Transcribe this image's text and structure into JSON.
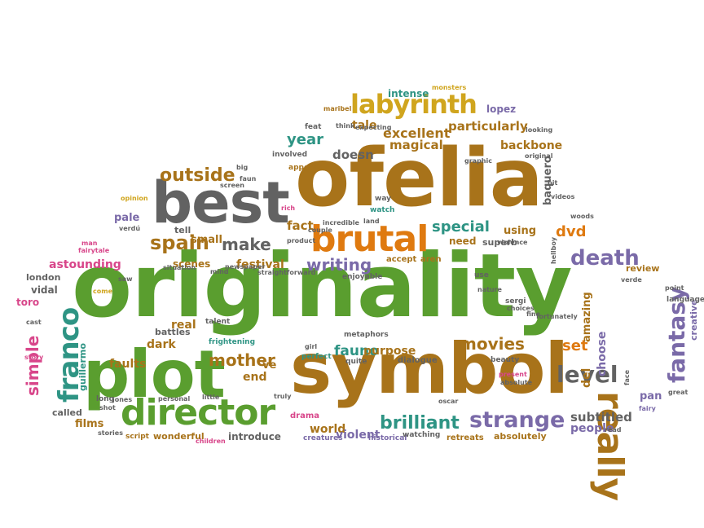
{
  "colors": {
    "green": "#5a9e2f",
    "brown": "#a8731a",
    "orange": "#df7a10",
    "gray": "#626262",
    "purple": "#7a6aa8",
    "teal": "#2e9484",
    "pink": "#d8468a",
    "yellow": "#d0a51e",
    "olive": "#7d8c2c"
  },
  "words": [
    "originality",
    "symbol",
    "ofelia",
    "plot",
    "best",
    "brutal",
    "director",
    "labyrinth",
    "franco",
    "really",
    "strange",
    "level",
    "brilliant",
    "outside",
    "spain",
    "make",
    "writing",
    "fantasy",
    "death",
    "mother",
    "movies",
    "special",
    "fauno",
    "year",
    "excellent",
    "particularly",
    "magical",
    "backbone",
    "tale",
    "lopez",
    "dvd",
    "fact",
    "need",
    "using",
    "purpose",
    "set",
    "end",
    "astounding",
    "simple",
    "london",
    "vidal",
    "toro",
    "guillermo",
    "pale",
    "small",
    "scenes",
    "festival",
    "dark",
    "real",
    "faults",
    "battles",
    "films",
    "world",
    "violent",
    "subtitled",
    "people",
    "choose",
    "pan",
    "del",
    "amazing",
    "absolutely",
    "introduce",
    "wonderful",
    "called",
    "doesn",
    "intense",
    "monsters",
    "baquero",
    "graphic",
    "original",
    "fairy",
    "creative",
    "review",
    "sergi",
    "language",
    "tell",
    "dialogue",
    "perfect",
    "ve",
    "superb",
    "accept",
    "aren",
    "use",
    "present",
    "quite",
    "beauty",
    "frightening",
    "talent",
    "drama",
    "creatures",
    "historical",
    "watching",
    "retreats",
    "script",
    "children",
    "stories",
    "shot",
    "long",
    "jones",
    "personal",
    "little",
    "story",
    "cast",
    "saw",
    "come",
    "man",
    "fairytale",
    "verdú",
    "opinion",
    "rich",
    "way",
    "land",
    "watch",
    "incredible",
    "couple",
    "product",
    "straightforward",
    "enjoyable",
    "newspaper",
    "appears",
    "involved",
    "big",
    "faun",
    "screen",
    "feat",
    "think",
    "expecting",
    "looking",
    "maribel",
    "bit",
    "videos",
    "woods",
    "point",
    "great",
    "hellboy",
    "violence",
    "situation",
    "metaphors",
    "oscar",
    "face",
    "truly",
    "girl",
    "read",
    "absolute",
    "nature",
    "choices",
    "fine",
    "fortunately",
    "verde",
    "mind"
  ]
}
